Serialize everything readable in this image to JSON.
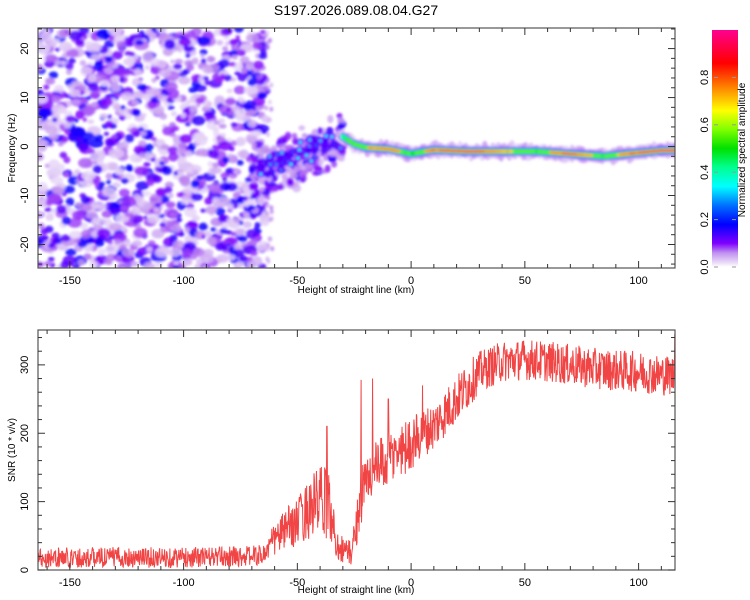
{
  "figure_title": "S197.2026.089.08.04.G27",
  "chart_data": [
    {
      "type": "heatmap",
      "name": "spectrogram",
      "title": "",
      "xlabel": "Height of straight line (km)",
      "ylabel": "Frequency (Hz)",
      "xlim": [
        -164,
        116
      ],
      "ylim": [
        -24.8,
        24.2
      ],
      "xticks": [
        -150,
        -100,
        -50,
        0,
        50,
        100
      ],
      "xtick_labels": [
        "-150",
        "-100",
        "-50",
        "0",
        "50",
        "100"
      ],
      "yticks": [
        -20,
        -10,
        0,
        10,
        20
      ],
      "ytick_labels": [
        "-20",
        "-10",
        "0",
        "10",
        "20"
      ],
      "grid": false,
      "description": "Random low-amplitude noise speckle (normalized amplitude ~0.0-0.2) for height < -70 km; scattered signal between -70 and -30 km rising from about -5 Hz to +2 Hz; a narrow strong tone near -1 Hz from -30 km to 116 km with normalized amplitude 0.4-1.0",
      "noise_region_km": [
        -164,
        -70
      ],
      "transition_region_km": [
        -70,
        -30
      ],
      "tone_segments": [
        {
          "x": -30,
          "freq": 2.0,
          "amp": 0.45
        },
        {
          "x": -25,
          "freq": 0.5,
          "amp": 0.6
        },
        {
          "x": -20,
          "freq": -0.2,
          "amp": 0.7
        },
        {
          "x": -10,
          "freq": -0.5,
          "amp": 0.85
        },
        {
          "x": 0,
          "freq": -1.5,
          "amp": 0.5
        },
        {
          "x": 10,
          "freq": -0.7,
          "amp": 0.9
        },
        {
          "x": 25,
          "freq": -1.0,
          "amp": 0.95
        },
        {
          "x": 40,
          "freq": -1.0,
          "amp": 0.75
        },
        {
          "x": 55,
          "freq": -1.0,
          "amp": 0.55
        },
        {
          "x": 70,
          "freq": -1.5,
          "amp": 0.95
        },
        {
          "x": 85,
          "freq": -2.0,
          "amp": 0.5
        },
        {
          "x": 95,
          "freq": -1.5,
          "amp": 0.85
        },
        {
          "x": 110,
          "freq": -0.8,
          "amp": 1.0
        }
      ],
      "colorbar": {
        "label": "Normalized spectral amplitude",
        "range": [
          0.0,
          1.0
        ],
        "ticks": [
          0.0,
          0.2,
          0.4,
          0.6,
          0.8
        ],
        "tick_labels": [
          "0.0",
          "0.2",
          "0.4",
          "0.6",
          "0.8"
        ],
        "colors": [
          "#ffffff",
          "#e8d8f8",
          "#8000ff",
          "#0000ff",
          "#0080ff",
          "#00ffff",
          "#00ff80",
          "#00e000",
          "#80ff00",
          "#ffff00",
          "#ff8000",
          "#ff0000",
          "#ff0080"
        ]
      }
    },
    {
      "type": "line",
      "name": "snr",
      "title": "",
      "xlabel": "Height of straight line (km)",
      "ylabel": "SNR (10 * v/v)",
      "xlim": [
        -164,
        116
      ],
      "ylim": [
        0,
        351
      ],
      "xticks": [
        -150,
        -100,
        -50,
        0,
        50,
        100
      ],
      "xtick_labels": [
        "-150",
        "-100",
        "-50",
        "0",
        "50",
        "100"
      ],
      "yticks": [
        0,
        100,
        200,
        300
      ],
      "ytick_labels": [
        "0",
        "100",
        "200",
        "300"
      ],
      "grid": false,
      "color": "#f03030",
      "series": [
        {
          "name": "SNR",
          "x": [
            -164,
            -150,
            -130,
            -110,
            -90,
            -75,
            -65,
            -60,
            -55,
            -50,
            -45,
            -40,
            -36,
            -33,
            -30,
            -26,
            -22,
            -18,
            -15,
            -10,
            -5,
            0,
            5,
            10,
            15,
            20,
            25,
            30,
            40,
            50,
            60,
            70,
            80,
            90,
            100,
            110,
            116
          ],
          "mean": [
            18,
            18,
            19,
            18,
            19,
            20,
            22,
            45,
            60,
            70,
            90,
            100,
            95,
            40,
            30,
            25,
            110,
            140,
            150,
            160,
            175,
            185,
            200,
            210,
            230,
            250,
            270,
            290,
            305,
            308,
            305,
            300,
            295,
            292,
            290,
            285,
            285
          ],
          "noise_amp": [
            15,
            15,
            15,
            15,
            15,
            15,
            15,
            25,
            30,
            35,
            45,
            55,
            50,
            25,
            20,
            20,
            45,
            40,
            40,
            40,
            40,
            40,
            35,
            35,
            35,
            35,
            35,
            30,
            30,
            30,
            30,
            30,
            30,
            30,
            30,
            30,
            30
          ],
          "spikes": [
            {
              "x": -37,
              "y": 210
            },
            {
              "x": -22,
              "y": 278
            },
            {
              "x": -17,
              "y": 280
            },
            {
              "x": -10,
              "y": 250
            },
            {
              "x": 5,
              "y": 270
            },
            {
              "x": 116,
              "y": 345
            }
          ]
        }
      ]
    }
  ]
}
